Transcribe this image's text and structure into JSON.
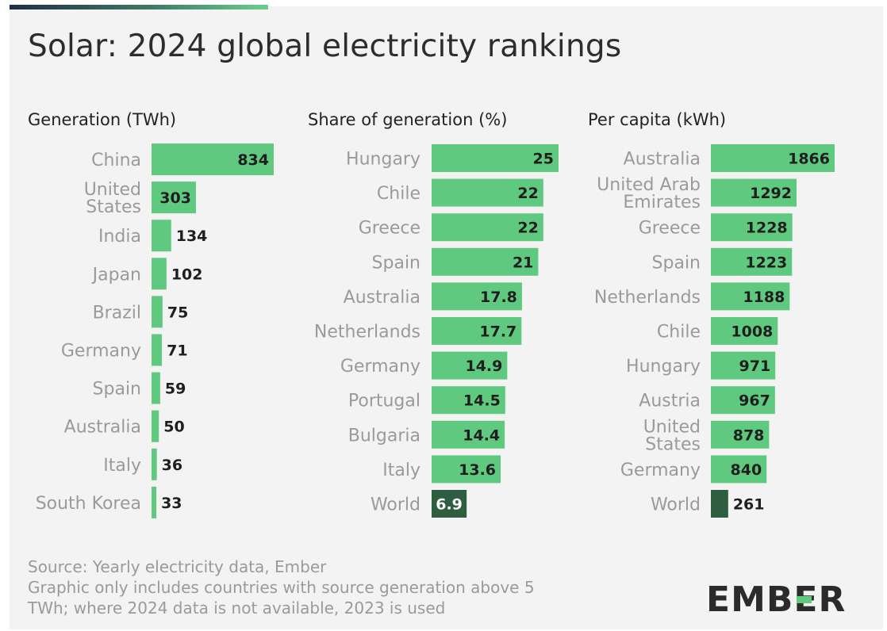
{
  "title": "Solar: 2024 global electricity rankings",
  "colors": {
    "bar": "#5ec97f",
    "world": "#2e5e3f",
    "label_dark": "#1e1e1e",
    "label_light": "#ffffff",
    "category": "#9a9a9a"
  },
  "chart_data": [
    {
      "type": "bar",
      "orientation": "horizontal",
      "title": "Generation (TWh)",
      "categories": [
        [
          "China"
        ],
        [
          "United",
          "States"
        ],
        [
          "India"
        ],
        [
          "Japan"
        ],
        [
          "Brazil"
        ],
        [
          "Germany"
        ],
        [
          "Spain"
        ],
        [
          "Australia"
        ],
        [
          "Italy"
        ],
        [
          "South Korea"
        ]
      ],
      "values": [
        834,
        303,
        134,
        102,
        75,
        71,
        59,
        50,
        36,
        33
      ],
      "labels": [
        "834",
        "303",
        "134",
        "102",
        "75",
        "71",
        "59",
        "50",
        "36",
        "33"
      ],
      "highlight": []
    },
    {
      "type": "bar",
      "orientation": "horizontal",
      "title": "Share of generation (%)",
      "categories": [
        [
          "Hungary"
        ],
        [
          "Chile"
        ],
        [
          "Greece"
        ],
        [
          "Spain"
        ],
        [
          "Australia"
        ],
        [
          "Netherlands"
        ],
        [
          "Germany"
        ],
        [
          "Portugal"
        ],
        [
          "Bulgaria"
        ],
        [
          "Italy"
        ],
        [
          "World"
        ]
      ],
      "values": [
        25,
        22,
        22,
        21,
        17.8,
        17.7,
        14.9,
        14.5,
        14.4,
        13.6,
        6.9
      ],
      "labels": [
        "25",
        "22",
        "22",
        "21",
        "17.8",
        "17.7",
        "14.9",
        "14.5",
        "14.4",
        "13.6",
        "6.9"
      ],
      "highlight": [
        "World"
      ]
    },
    {
      "type": "bar",
      "orientation": "horizontal",
      "title": "Per capita (kWh)",
      "categories": [
        [
          "Australia"
        ],
        [
          "United Arab",
          "Emirates"
        ],
        [
          "Greece"
        ],
        [
          "Spain"
        ],
        [
          "Netherlands"
        ],
        [
          "Chile"
        ],
        [
          "Hungary"
        ],
        [
          "Austria"
        ],
        [
          "United",
          "States"
        ],
        [
          "Germany"
        ],
        [
          "World"
        ]
      ],
      "values": [
        1866,
        1292,
        1228,
        1223,
        1188,
        1008,
        971,
        967,
        878,
        840,
        261
      ],
      "labels": [
        "1866",
        "1292",
        "1228",
        "1223",
        "1188",
        "1008",
        "971",
        "967",
        "878",
        "840",
        "261"
      ],
      "highlight": [
        "World"
      ]
    }
  ],
  "footer": {
    "lines": [
      "Source: Yearly electricity data, Ember",
      "Graphic only includes countries with source generation above 5",
      "TWh; where 2024 data is not available, 2023 is used"
    ]
  },
  "logo": {
    "text": "EMBER"
  }
}
